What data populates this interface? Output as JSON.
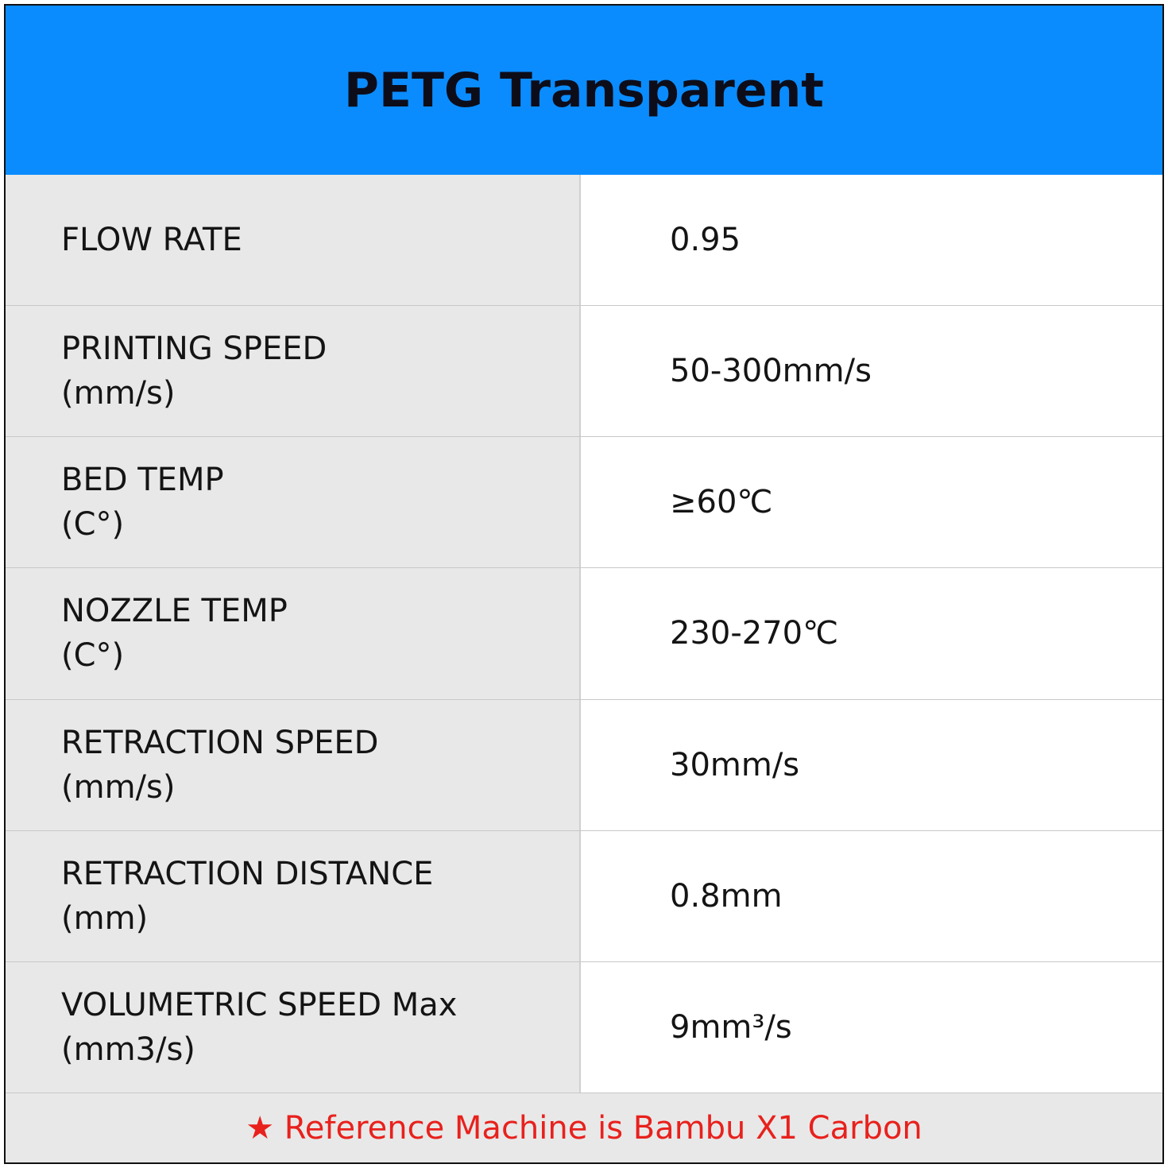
{
  "header": {
    "title": "PETG Transparent"
  },
  "table": {
    "rows": [
      {
        "label": [
          "FLOW RATE"
        ],
        "value": "0.95"
      },
      {
        "label": [
          "PRINTING SPEED",
          "(mm/s)"
        ],
        "value": "50-300mm/s"
      },
      {
        "label": [
          "BED TEMP",
          "(C°)"
        ],
        "value": "≥60℃"
      },
      {
        "label": [
          "NOZZLE TEMP",
          "(C°)"
        ],
        "value": "230-270℃"
      },
      {
        "label": [
          "RETRACTION SPEED",
          "(mm/s)"
        ],
        "value": "30mm/s"
      },
      {
        "label": [
          "RETRACTION DISTANCE",
          "(mm)"
        ],
        "value": "0.8mm"
      },
      {
        "label": [
          "VOLUMETRIC SPEED Max",
          "(mm3/s)"
        ],
        "value": "9mm³/s"
      }
    ]
  },
  "footer": {
    "note": "★ Reference Machine is Bambu X1 Carbon"
  }
}
